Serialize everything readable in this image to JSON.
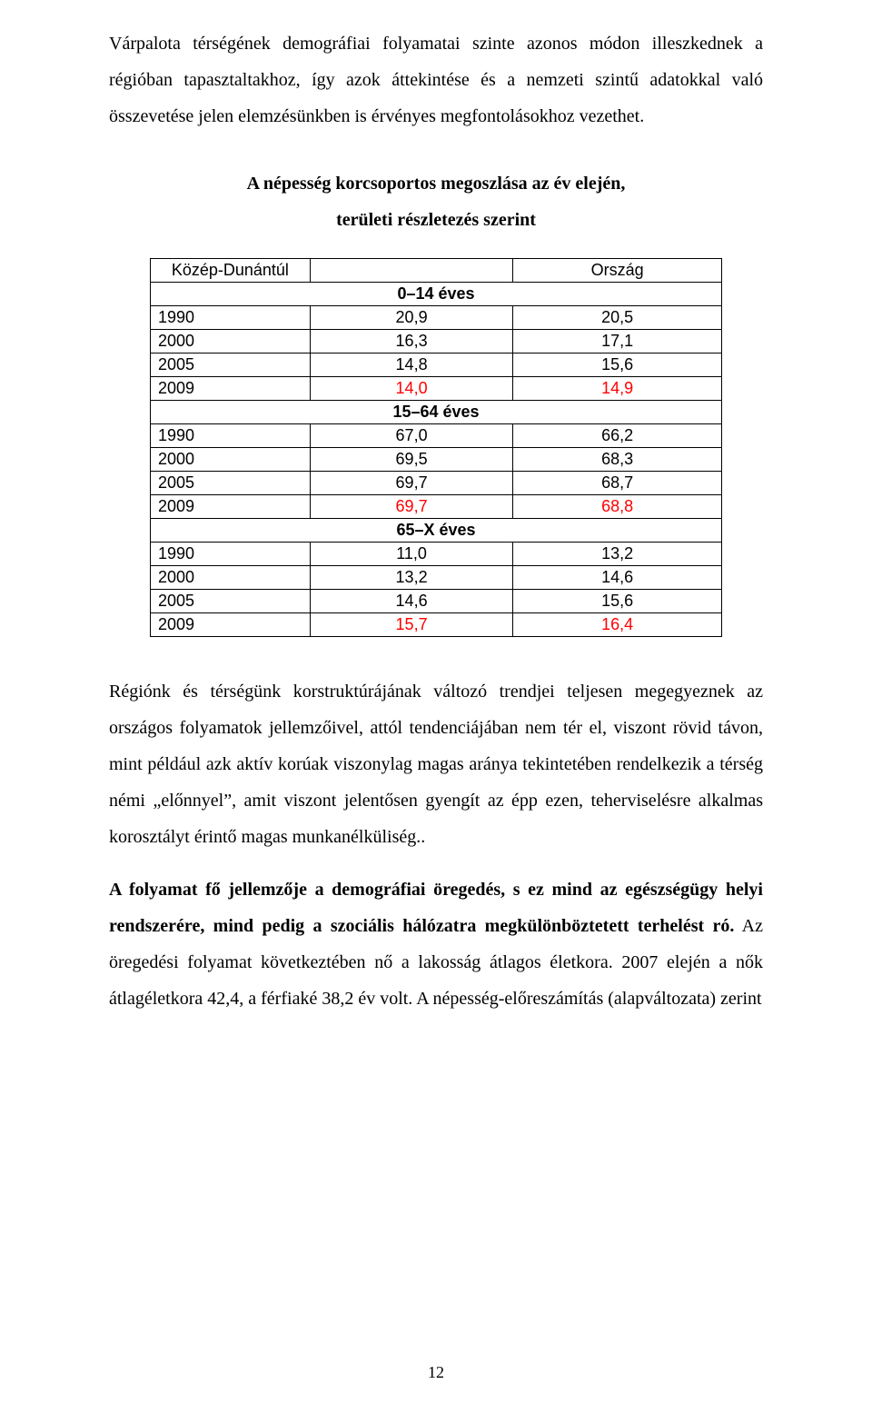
{
  "paragraphs": {
    "p1": "Várpalota térségének demográfiai folyamatai szinte azonos módon illeszkednek a régióban tapasztaltakhoz, így azok áttekintése és a nemzeti szintű adatokkal való összevetése jelen elemzésünkben is érvényes megfontolásokhoz vezethet.",
    "p3": "Régiónk és térségünk korstruktúrájának változó trendjei teljesen megegyeznek az országos folyamatok jellemzőivel, attól tendenciájában nem tér el, viszont rövid távon, mint például azk aktív korúak viszonylag magas aránya tekintetében rendelkezik a térség némi „előnnyel”, amit viszont jelentősen gyengít az épp ezen, teherviselésre alkalmas korosztályt érintő magas munkanélküliség..",
    "p4_bold": "A folyamat fő jellemzője a demográfiai öregedés, s ez mind az egészségügy helyi rendszerére, mind pedig a szociális hálózatra megkülönböztetett terhelést ró.",
    "p4_rest": " Az öregedési folyamat következtében nő a lakosság átlagos életkora. 2007 elején a nők átlagéletkora 42,4, a férfiaké 38,2 év volt. A népesség-előreszámítás (alapváltozata)  zerint"
  },
  "table": {
    "title_line1": "A népesség korcsoportos megoszlása az év elején,",
    "title_line2": "területi részletezés szerint",
    "header_left": "Közép-Dunántúl",
    "header_right": "Ország",
    "section1_label": "0–14 éves",
    "section2_label": "15–64 éves",
    "section3_label": "65–X éves",
    "section1": [
      {
        "year": "1990",
        "mid": "20,9",
        "right": "20,5",
        "red": false
      },
      {
        "year": "2000",
        "mid": "16,3",
        "right": "17,1",
        "red": false
      },
      {
        "year": "2005",
        "mid": "14,8",
        "right": "15,6",
        "red": false
      },
      {
        "year": "2009",
        "mid": "14,0",
        "right": "14,9",
        "red": true
      }
    ],
    "section2": [
      {
        "year": "1990",
        "mid": "67,0",
        "right": "66,2",
        "red": false
      },
      {
        "year": "2000",
        "mid": "69,5",
        "right": "68,3",
        "red": false
      },
      {
        "year": "2005",
        "mid": "69,7",
        "right": "68,7",
        "red": false
      },
      {
        "year": "2009",
        "mid": "69,7",
        "right": "68,8",
        "red": true
      }
    ],
    "section3": [
      {
        "year": "1990",
        "mid": "11,0",
        "right": "13,2",
        "red": false
      },
      {
        "year": "2000",
        "mid": "13,2",
        "right": "14,6",
        "red": false
      },
      {
        "year": "2005",
        "mid": "14,6",
        "right": "15,6",
        "red": false
      },
      {
        "year": "2009",
        "mid": "15,7",
        "right": "16,4",
        "red": true
      }
    ]
  },
  "page_number": "12",
  "colors": {
    "highlight": "#ff0000",
    "text": "#000000",
    "border": "#000000",
    "background": "#ffffff"
  }
}
